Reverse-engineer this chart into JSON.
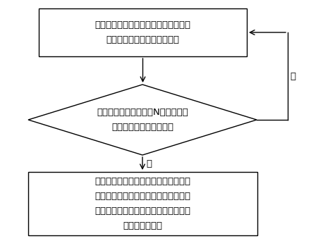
{
  "box1_text_line1": "获取预设范围内若干乘客的起点信息和",
  "box1_text_line2": "终点信息，生成若干乘车路径",
  "diamond_text_line1": "所述若干乘车路径中有N个乘车路径",
  "diamond_text_line2": "可重合形成同一乘车路径",
  "box2_text_line1": "计算所述同一乘车路径中各个重合路径",
  "box2_text_line2": "的对应费用及对应人数，按照所述对应",
  "box2_text_line3": "人数的预设比例将所述对应费用分别分",
  "box2_text_line4": "摊给对应的乘客",
  "label_yes": "是",
  "label_no": "否",
  "box_color": "#ffffff",
  "box_edge_color": "#000000",
  "arrow_color": "#000000",
  "text_color": "#000000",
  "bg_color": "#ffffff",
  "fontsize": 9.5,
  "label_fontsize": 9.5
}
